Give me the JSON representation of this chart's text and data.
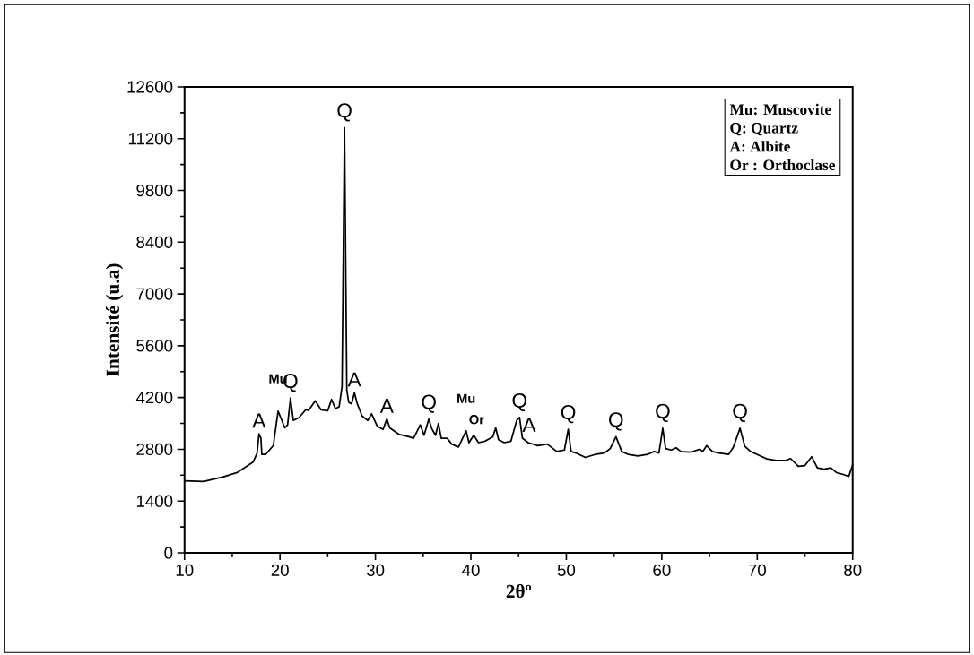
{
  "chart_data": {
    "type": "line",
    "xlabel": "2θº",
    "ylabel": "Intensité (u.a)",
    "xlim": [
      10,
      80
    ],
    "ylim": [
      0,
      12600
    ],
    "xticks": [
      10,
      20,
      30,
      40,
      50,
      60,
      70,
      80
    ],
    "yticks": [
      0,
      1400,
      2800,
      4200,
      5600,
      7000,
      8400,
      9800,
      11200,
      12600
    ],
    "grid": false,
    "marker": "none",
    "line_style": "solid",
    "series": [
      {
        "color": "#000000",
        "x": [
          10,
          12,
          14,
          15.5,
          16.5,
          17.2,
          17.6,
          17.8,
          18,
          18.1,
          18.5,
          19.3,
          19.8,
          20.2,
          20.5,
          20.8,
          21.1,
          21.4,
          22,
          22.7,
          23,
          23.7,
          24.3,
          25,
          25.4,
          25.8,
          26.2,
          26.5,
          26.76,
          27,
          27.2,
          27.5,
          27.8,
          28.1,
          28.6,
          29.2,
          29.6,
          30.2,
          30.8,
          31.2,
          31.5,
          32.5,
          33.5,
          34,
          34.7,
          35.1,
          35.6,
          35.9,
          36.3,
          36.6,
          36.9,
          37.5,
          38,
          38.7,
          39.5,
          39.8,
          40.3,
          40.8,
          41.5,
          42.3,
          42.6,
          42.9,
          43.5,
          44.2,
          44.8,
          45.1,
          45.4,
          46,
          47,
          48,
          49,
          49.8,
          50.2,
          50.5,
          51,
          52,
          53,
          54,
          54.6,
          55.2,
          55.8,
          56.5,
          57.5,
          58.5,
          59.2,
          59.7,
          60.1,
          60.4,
          61,
          61.5,
          62,
          63,
          64,
          64.3,
          64.7,
          65.3,
          66,
          67,
          67.5,
          68.2,
          68.7,
          69.3,
          70,
          71,
          72,
          73,
          73.5,
          74.3,
          75,
          75.7,
          76.3,
          77,
          77.7,
          78.3,
          79,
          79.6,
          80
        ],
        "values": [
          1950,
          1930,
          2050,
          2170,
          2340,
          2460,
          2700,
          3220,
          3100,
          2660,
          2660,
          2900,
          3830,
          3580,
          3380,
          3460,
          4190,
          3580,
          3660,
          3870,
          3850,
          4110,
          3870,
          3840,
          4150,
          3900,
          3950,
          4500,
          11500,
          4400,
          4070,
          4030,
          4330,
          4030,
          3700,
          3580,
          3760,
          3420,
          3340,
          3620,
          3380,
          3200,
          3140,
          3100,
          3460,
          3180,
          3620,
          3360,
          3180,
          3500,
          3100,
          3100,
          2940,
          2860,
          3300,
          2980,
          3180,
          2980,
          3020,
          3140,
          3380,
          3060,
          2980,
          3020,
          3580,
          3660,
          3100,
          2980,
          2900,
          2940,
          2740,
          2780,
          3340,
          2740,
          2700,
          2580,
          2660,
          2700,
          2820,
          3140,
          2740,
          2660,
          2620,
          2660,
          2740,
          2700,
          3370,
          2820,
          2780,
          2840,
          2740,
          2720,
          2800,
          2740,
          2900,
          2740,
          2700,
          2660,
          2860,
          3370,
          2880,
          2740,
          2660,
          2540,
          2500,
          2500,
          2550,
          2340,
          2360,
          2600,
          2300,
          2260,
          2300,
          2170,
          2120,
          2070,
          2380
        ]
      }
    ],
    "annotations": [
      {
        "text": "A",
        "x": 17.8,
        "y": 3220
      },
      {
        "text": "Mu",
        "x": 19.8,
        "y": 3830
      },
      {
        "text": "Q",
        "x": 21.1,
        "y": 4190
      },
      {
        "text": "Q",
        "x": 26.76,
        "y": 11500
      },
      {
        "text": "A",
        "x": 27.8,
        "y": 4330
      },
      {
        "text": "A",
        "x": 31.2,
        "y": 3620
      },
      {
        "text": "Q",
        "x": 35.6,
        "y": 3620
      },
      {
        "text": "Mu",
        "x": 39.5,
        "y": 3300
      },
      {
        "text": "Or",
        "x": 40.6,
        "y": 3180
      },
      {
        "text": "Q",
        "x": 45.1,
        "y": 3660
      },
      {
        "text": "A",
        "x": 46.1,
        "y": 3100
      },
      {
        "text": "Q",
        "x": 50.2,
        "y": 3340
      },
      {
        "text": "Q",
        "x": 55.2,
        "y": 3140
      },
      {
        "text": "Q",
        "x": 60.1,
        "y": 3370
      },
      {
        "text": "Q",
        "x": 68.2,
        "y": 3370
      },
      "Mu:  Muscovite",
      "Q: Quartz",
      "A: Albite",
      "Or : Orthoclase"
    ]
  }
}
